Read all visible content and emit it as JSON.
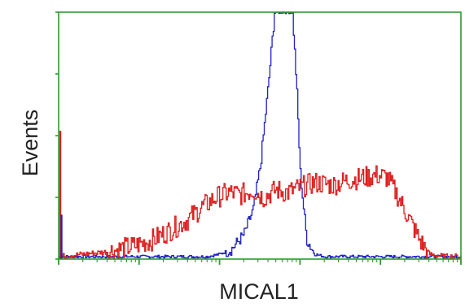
{
  "chart_data": {
    "type": "line",
    "xlabel": "MICAL1",
    "ylabel": "Events",
    "x_scale": "log",
    "xlim": [
      1,
      100000
    ],
    "ylim": [
      0,
      100
    ],
    "x_major_ticks": [
      1,
      10,
      100,
      1000,
      10000,
      100000
    ],
    "y_tick_count": 4,
    "tick_labels_shown": false,
    "grid": false,
    "legend": "none",
    "series": [
      {
        "color": "#2020cc",
        "style": "narrow-peak",
        "x": [
          1,
          1.5,
          3,
          5,
          8,
          12,
          18,
          25,
          35,
          50,
          70,
          100,
          140,
          200,
          260,
          320,
          400,
          480,
          560,
          640,
          720,
          800,
          900,
          1000,
          1200,
          1500,
          2000,
          3000,
          5000,
          10000,
          30000,
          100000
        ],
        "values": [
          1,
          1,
          1,
          1,
          1,
          1,
          1,
          1,
          1,
          1,
          1,
          2,
          4,
          10,
          20,
          38,
          70,
          100,
          100,
          100,
          100,
          100,
          70,
          35,
          8,
          2,
          1,
          1,
          1,
          1,
          1,
          1
        ]
      },
      {
        "color": "#dd2020",
        "style": "broad",
        "x": [
          1,
          2,
          4,
          8,
          15,
          25,
          40,
          60,
          90,
          130,
          180,
          260,
          350,
          500,
          700,
          1000,
          1500,
          2500,
          4000,
          6000,
          9000,
          12000,
          16000,
          22000,
          30000,
          40000,
          60000,
          100000
        ],
        "values": [
          1,
          2,
          3,
          5,
          8,
          12,
          16,
          21,
          25,
          27,
          26,
          28,
          25,
          28,
          27,
          29,
          31,
          30,
          32,
          33,
          34,
          33,
          26,
          17,
          8,
          2,
          1,
          1
        ]
      }
    ]
  }
}
